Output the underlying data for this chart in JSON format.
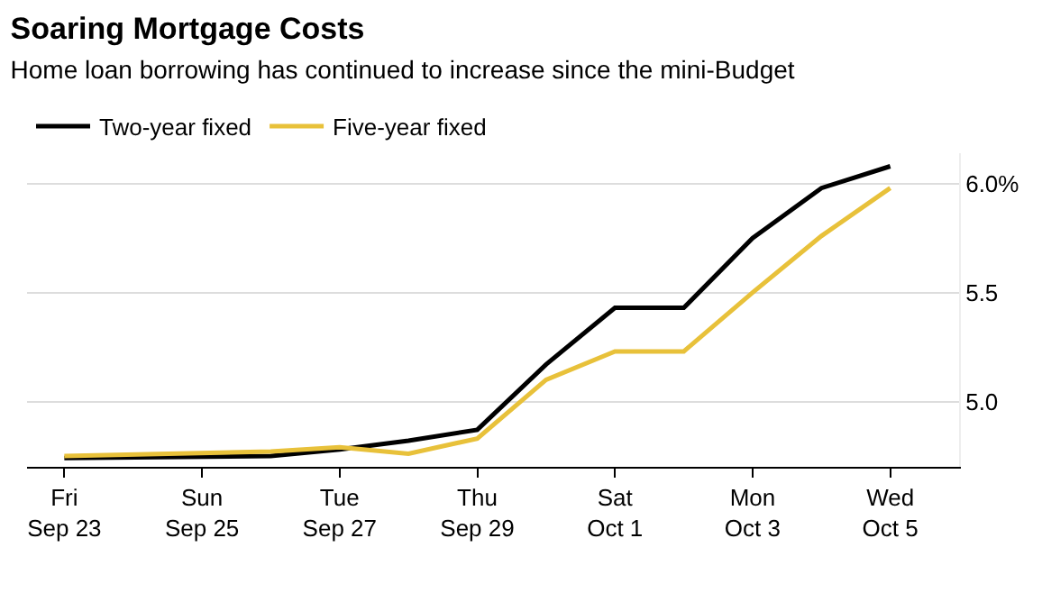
{
  "chart_data": {
    "type": "line",
    "title": "Soaring Mortgage Costs",
    "subtitle": "Home loan borrowing has continued to increase since the mini-Budget",
    "x": [
      "--09-23",
      "--09-26",
      "--09-27",
      "--09-28",
      "--09-29",
      "--09-30",
      "--10-01",
      "--10-02",
      "--10-03",
      "--10-04",
      "--10-05"
    ],
    "series": [
      {
        "name": "Two-year fixed",
        "color": "#000000",
        "values": [
          4.74,
          4.75,
          4.78,
          4.82,
          4.87,
          5.17,
          5.43,
          5.43,
          5.75,
          5.98,
          6.08
        ]
      },
      {
        "name": "Five-year fixed",
        "color": "#e8c13a",
        "values": [
          4.75,
          4.77,
          4.79,
          4.76,
          4.83,
          5.1,
          5.23,
          5.23,
          5.5,
          5.76,
          5.98
        ]
      }
    ],
    "xlim": [
      "--09-22T11:00",
      "--10-06T00:00"
    ],
    "xticks": [
      {
        "value": "--09-23",
        "label": "Fri\nSep 23"
      },
      {
        "value": "--09-25",
        "label": "Sun\nSep 25"
      },
      {
        "value": "--09-27",
        "label": "Tue\nSep 27"
      },
      {
        "value": "--09-29",
        "label": "Thu\nSep 29"
      },
      {
        "value": "--10-01",
        "label": "Sat\nOct 1"
      },
      {
        "value": "--10-03",
        "label": "Mon\nOct 3"
      },
      {
        "value": "--10-05",
        "label": "Wed\nOct 5"
      }
    ],
    "ylim": [
      4.7,
      6.14
    ],
    "yticks": [
      {
        "value": 5.0,
        "label": "5.0"
      },
      {
        "value": 5.5,
        "label": "5.5"
      },
      {
        "value": 6.0,
        "label": "6.0%"
      }
    ],
    "grid": "y",
    "legend": "top left",
    "marker": "none",
    "line_style": "solid"
  }
}
